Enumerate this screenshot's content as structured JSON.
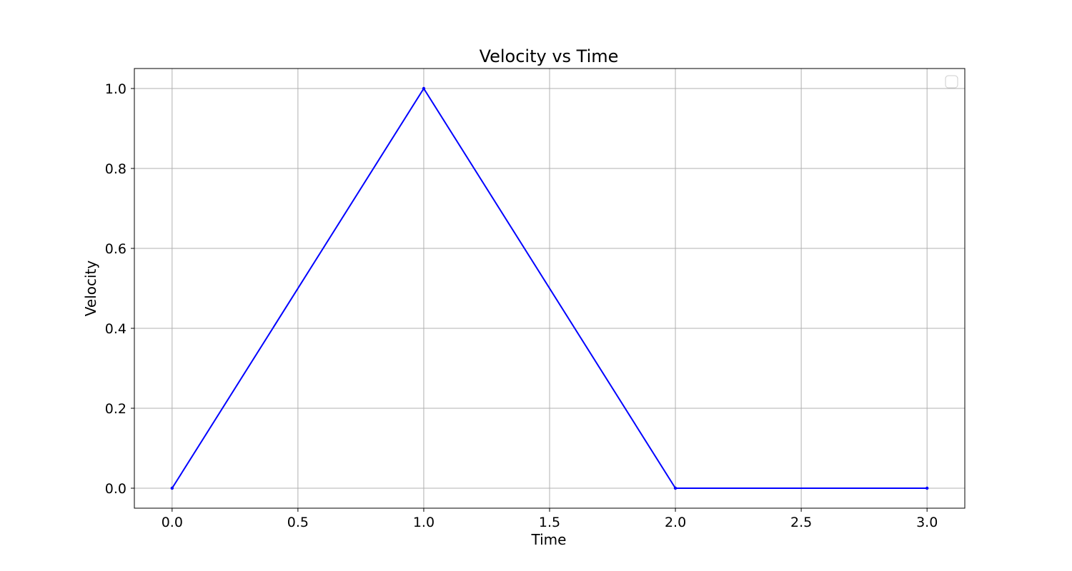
{
  "chart_data": {
    "type": "line",
    "title": "Velocity vs Time",
    "xlabel": "Time",
    "ylabel": "Velocity",
    "xlim": [
      -0.15,
      3.15
    ],
    "ylim": [
      -0.05,
      1.05
    ],
    "xticks": [
      "0.0",
      "0.5",
      "1.0",
      "1.5",
      "2.0",
      "2.5",
      "3.0"
    ],
    "yticks": [
      "0.0",
      "0.2",
      "0.4",
      "0.6",
      "0.8",
      "1.0"
    ],
    "grid": true,
    "legend": "top-right",
    "series": [
      {
        "color": "#0000ff",
        "marker": "dot",
        "points": [
          {
            "x": 0,
            "y": 0
          },
          {
            "x": 1,
            "y": 1
          },
          {
            "x": 2,
            "y": 0
          },
          {
            "x": 3,
            "y": 0
          }
        ]
      }
    ]
  }
}
